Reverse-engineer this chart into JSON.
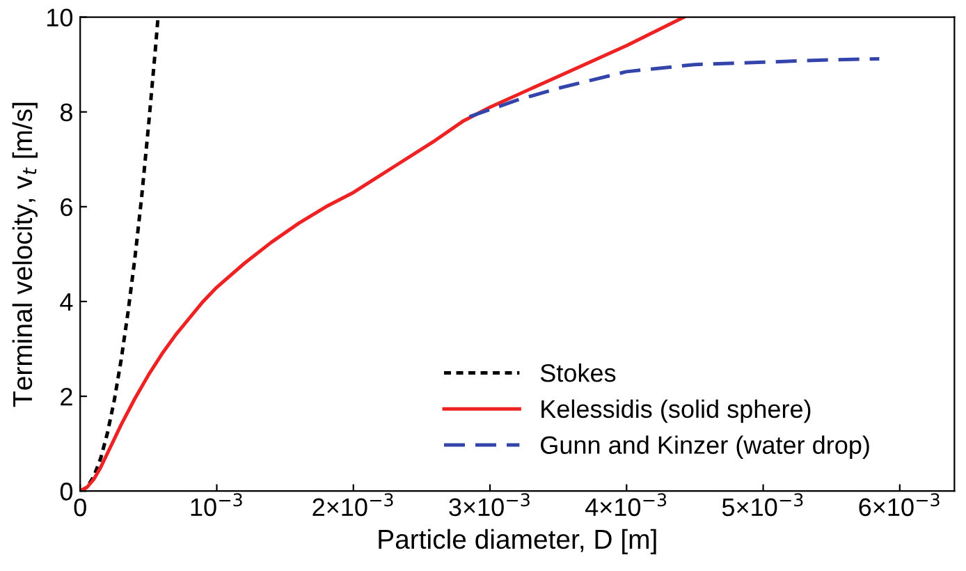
{
  "chart_data": {
    "type": "line",
    "xlabel": "Particle diameter, D [m]",
    "ylabel": "Terminal velocity, v$_{t}$ [m/s]",
    "xlim": [
      0,
      0.0064
    ],
    "ylim": [
      0,
      10
    ],
    "xticks": [
      0,
      {
        "value": 0.001,
        "label": "10$^{−3}$"
      },
      {
        "value": 0.002,
        "label": "2×10$^{−3}$"
      },
      {
        "value": 0.003,
        "label": "3×10$^{−3}$"
      },
      {
        "value": 0.004,
        "label": "4×10$^{−3}$"
      },
      {
        "value": 0.005,
        "label": "5×10$^{−3}$"
      },
      {
        "value": 0.006,
        "label": "6×10$^{−3}$"
      }
    ],
    "yticks": [
      0,
      2,
      4,
      6,
      8,
      10
    ],
    "grid": false,
    "legend": "bottom right",
    "series": [
      {
        "name": "Stokes",
        "color": "#000000",
        "line_style": "dotted",
        "x": [
          0,
          5e-05,
          0.0001,
          0.00015,
          0.0002,
          0.00025,
          0.0003,
          0.00035,
          0.0004,
          0.00045,
          0.0005,
          0.00055,
          0.00057
        ],
        "values": [
          0,
          0.08,
          0.31,
          0.69,
          1.23,
          1.92,
          2.77,
          3.77,
          4.9,
          6.2,
          7.7,
          9.3,
          10
        ]
      },
      {
        "name": "Kelessidis (solid sphere)",
        "color": "#ee2222",
        "line_style": "solid",
        "x": [
          0,
          5e-05,
          0.0001,
          0.00015,
          0.0002,
          0.00025,
          0.0003,
          0.0004,
          0.0005,
          0.0006,
          0.0007,
          0.0008,
          0.0009,
          0.001,
          0.0012,
          0.0014,
          0.0016,
          0.0018,
          0.002,
          0.0023,
          0.0026,
          0.0028,
          0.003,
          0.0035,
          0.004,
          0.00442
        ],
        "values": [
          0,
          0.08,
          0.25,
          0.5,
          0.8,
          1.1,
          1.4,
          1.95,
          2.45,
          2.9,
          3.3,
          3.65,
          4.0,
          4.3,
          4.8,
          5.25,
          5.65,
          6.0,
          6.3,
          6.85,
          7.4,
          7.8,
          8.1,
          8.75,
          9.4,
          10
        ]
      },
      {
        "name": "Gunn and Kinzer (water drop)",
        "color": "#3344aa",
        "line_style": "dashed",
        "x": [
          0.00285,
          0.0032,
          0.0035,
          0.004,
          0.0045,
          0.005,
          0.0055,
          0.00585
        ],
        "values": [
          7.9,
          8.25,
          8.5,
          8.85,
          9.0,
          9.05,
          9.1,
          9.12
        ]
      }
    ]
  }
}
